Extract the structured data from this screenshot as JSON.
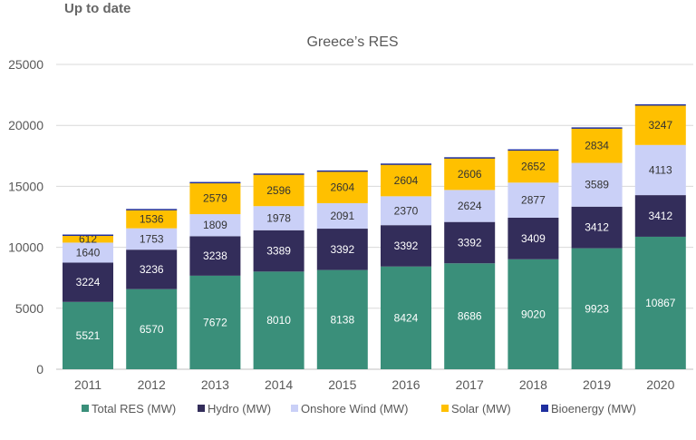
{
  "header": "Up to date",
  "chart_data": {
    "type": "bar",
    "stacked": true,
    "title": "Greece’s RES",
    "categories": [
      "2011",
      "2012",
      "2013",
      "2014",
      "2015",
      "2016",
      "2017",
      "2018",
      "2019",
      "2020"
    ],
    "series": [
      {
        "name": "Total RES (MW)",
        "color": "#3a8f7a",
        "values": [
          5521,
          6570,
          7672,
          8010,
          8138,
          8424,
          8686,
          9020,
          9923,
          10867
        ]
      },
      {
        "name": "Hydro (MW)",
        "color": "#332d5a",
        "values": [
          3224,
          3236,
          3238,
          3389,
          3392,
          3392,
          3392,
          3409,
          3412,
          3412
        ]
      },
      {
        "name": "Onshore Wind (MW)",
        "color": "#cad0f7",
        "values": [
          1640,
          1753,
          1809,
          1978,
          2091,
          2370,
          2624,
          2877,
          3589,
          4113
        ]
      },
      {
        "name": "Solar (MW)",
        "color": "#ffc000",
        "values": [
          612,
          1536,
          2579,
          2596,
          2604,
          2604,
          2606,
          2652,
          2834,
          3247
        ]
      },
      {
        "name": "Bioenergy (MW)",
        "color": "#1f2f9f",
        "values": [
          50,
          50,
          60,
          80,
          80,
          80,
          80,
          80,
          80,
          90
        ]
      }
    ],
    "label_colors": [
      "#ffffff",
      "#ffffff",
      "#333333",
      "#333333",
      null
    ],
    "yticks": [
      0,
      5000,
      10000,
      15000,
      20000,
      25000
    ],
    "ylim": [
      0,
      25000
    ],
    "grid": true,
    "legend": "bottom"
  }
}
